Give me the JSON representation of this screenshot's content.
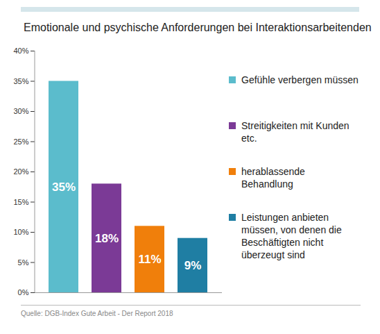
{
  "chart_data": {
    "type": "bar",
    "title": "Emotionale und psychische Anforderungen bei Interaktionsarbeitenden",
    "caption": "Quelle:  DGB-Index Gute Arbeit - Der Report 2018",
    "categories": [
      "Gefühle verbergen müssen",
      "Streitigkeiten mit Kunden etc.",
      "herablassende Behandlung",
      "Leistungen anbieten müssen, von denen die Beschäftigten nicht überzeugt sind"
    ],
    "values": [
      35,
      18,
      11,
      9
    ],
    "value_labels": [
      "35%",
      "18%",
      "11%",
      "9%"
    ],
    "colors": [
      "#5bbccc",
      "#7b3a96",
      "#f07f0b",
      "#1f7ea3"
    ],
    "ylim": [
      0,
      40
    ],
    "yticks": [
      {
        "value": 0,
        "label": "0%"
      },
      {
        "value": 5,
        "label": "5%"
      },
      {
        "value": 10,
        "label": "10%"
      },
      {
        "value": 15,
        "label": "15%"
      },
      {
        "value": 20,
        "label": "20%"
      },
      {
        "value": 25,
        "label": "25%"
      },
      {
        "value": 30,
        "label": "30%"
      },
      {
        "value": 35,
        "label": "35%"
      },
      {
        "value": 40,
        "label": "40%"
      }
    ],
    "grid": false,
    "data_labels": true,
    "tick_labels": "y",
    "legend": "right"
  }
}
